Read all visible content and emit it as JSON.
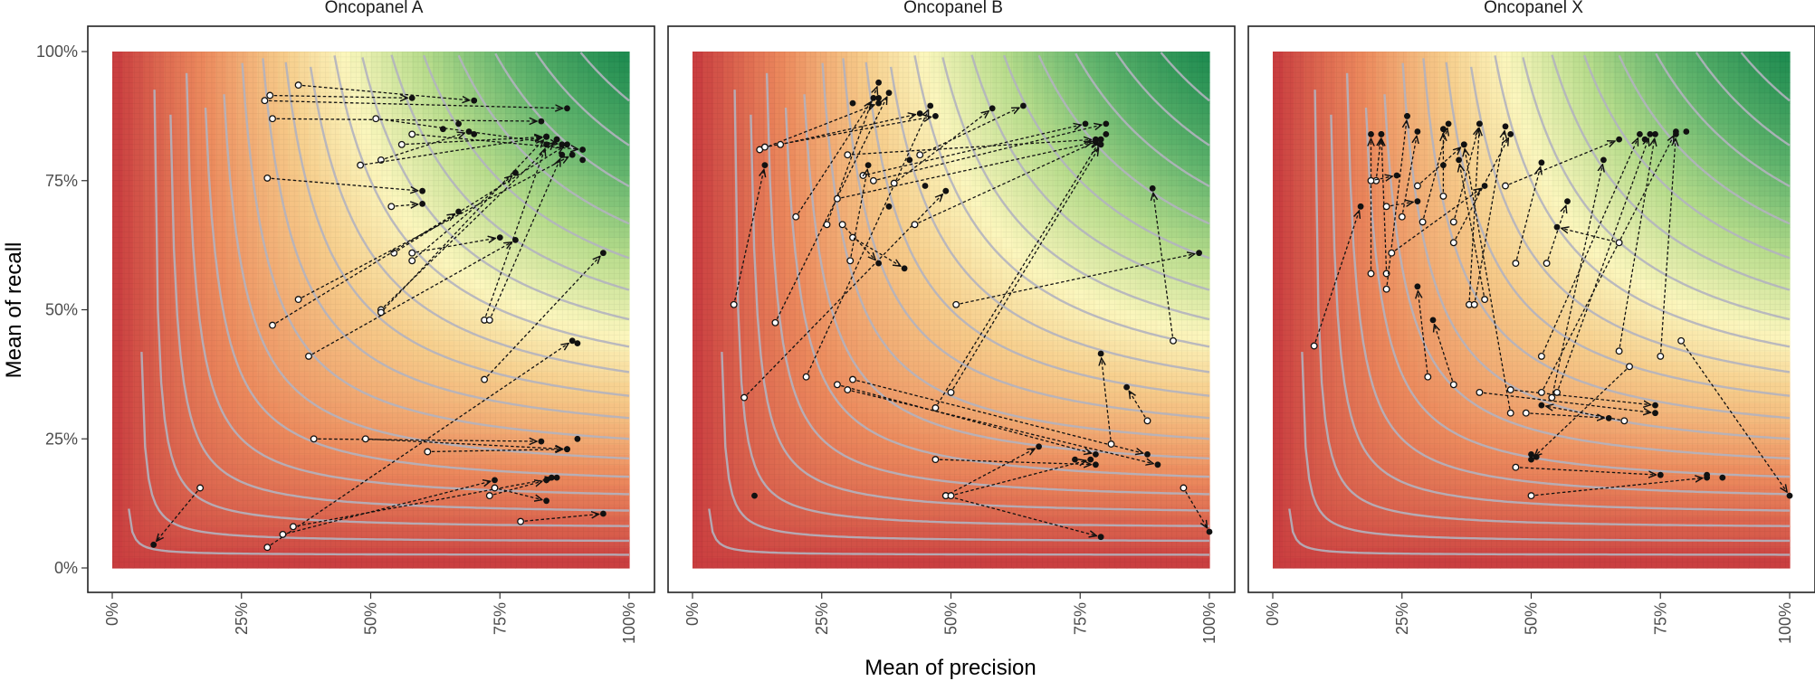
{
  "chart_data": {
    "type": "scatter",
    "xlabel": "Mean of precision",
    "ylabel": "Mean of recall",
    "xlim": [
      0,
      1
    ],
    "ylim": [
      0,
      1
    ],
    "ticks": [
      0,
      0.25,
      0.5,
      0.75,
      1
    ],
    "tick_labels": [
      "0%",
      "25%",
      "50%",
      "75%",
      "100%"
    ],
    "background": "F1-score heat map (red = low, yellow = mid, green = high) with iso-F1 contour lines",
    "colors": {
      "low": "#c83a3e",
      "mid": "#fbf6bd",
      "high": "#1b8a4f",
      "contour": "#b3b3bf",
      "arrow": "#111111"
    },
    "panels": [
      {
        "title": "Oncopanel A",
        "arrows": [
          [
            0.17,
            0.155,
            0.08,
            0.045
          ],
          [
            0.3,
            0.04,
            0.89,
            0.44
          ],
          [
            0.33,
            0.065,
            0.74,
            0.17
          ],
          [
            0.35,
            0.08,
            0.86,
            0.175
          ],
          [
            0.73,
            0.14,
            0.84,
            0.17
          ],
          [
            0.74,
            0.155,
            0.84,
            0.13
          ],
          [
            0.39,
            0.25,
            0.83,
            0.245
          ],
          [
            0.49,
            0.25,
            0.88,
            0.23
          ],
          [
            0.61,
            0.225,
            0.88,
            0.23
          ],
          [
            0.79,
            0.09,
            0.95,
            0.105
          ],
          [
            0.36,
            0.935,
            0.7,
            0.905
          ],
          [
            0.295,
            0.905,
            0.88,
            0.89
          ],
          [
            0.305,
            0.915,
            0.58,
            0.91
          ],
          [
            0.31,
            0.87,
            0.83,
            0.865
          ],
          [
            0.3,
            0.755,
            0.6,
            0.73
          ],
          [
            0.51,
            0.87,
            0.87,
            0.82
          ],
          [
            0.56,
            0.82,
            0.84,
            0.835
          ],
          [
            0.52,
            0.79,
            0.69,
            0.845
          ],
          [
            0.48,
            0.78,
            0.84,
            0.835
          ],
          [
            0.54,
            0.7,
            0.6,
            0.705
          ],
          [
            0.52,
            0.5,
            0.86,
            0.83
          ],
          [
            0.545,
            0.61,
            0.88,
            0.82
          ],
          [
            0.58,
            0.595,
            0.78,
            0.765
          ],
          [
            0.58,
            0.61,
            0.75,
            0.64
          ],
          [
            0.31,
            0.47,
            0.67,
            0.69
          ],
          [
            0.36,
            0.52,
            0.89,
            0.8
          ],
          [
            0.38,
            0.41,
            0.78,
            0.635
          ],
          [
            0.72,
            0.48,
            0.84,
            0.82
          ],
          [
            0.73,
            0.48,
            0.87,
            0.8
          ],
          [
            0.72,
            0.365,
            0.95,
            0.61
          ],
          [
            0.52,
            0.495,
            0.84,
            0.835
          ],
          [
            0.58,
            0.84,
            0.91,
            0.81
          ]
        ],
        "dots": [
          [
            0.9,
            0.435
          ],
          [
            0.85,
            0.175
          ],
          [
            0.9,
            0.25
          ],
          [
            0.91,
            0.79
          ],
          [
            0.86,
            0.83
          ],
          [
            0.64,
            0.85
          ],
          [
            0.67,
            0.86
          ],
          [
            0.7,
            0.84
          ]
        ]
      },
      {
        "title": "Oncopanel B",
        "arrows": [
          [
            0.08,
            0.51,
            0.14,
            0.78
          ],
          [
            0.1,
            0.33,
            0.49,
            0.73
          ],
          [
            0.16,
            0.475,
            0.38,
            0.92
          ],
          [
            0.13,
            0.81,
            0.36,
            0.9
          ],
          [
            0.14,
            0.815,
            0.47,
            0.875
          ],
          [
            0.17,
            0.82,
            0.44,
            0.88
          ],
          [
            0.2,
            0.68,
            0.35,
            0.91
          ],
          [
            0.22,
            0.37,
            0.46,
            0.895
          ],
          [
            0.26,
            0.665,
            0.36,
            0.94
          ],
          [
            0.28,
            0.715,
            0.78,
            0.825
          ],
          [
            0.3,
            0.8,
            0.78,
            0.83
          ],
          [
            0.33,
            0.76,
            0.76,
            0.86
          ],
          [
            0.35,
            0.75,
            0.8,
            0.86
          ],
          [
            0.39,
            0.745,
            0.58,
            0.89
          ],
          [
            0.43,
            0.665,
            0.79,
            0.83
          ],
          [
            0.29,
            0.665,
            0.36,
            0.59
          ],
          [
            0.31,
            0.64,
            0.41,
            0.58
          ],
          [
            0.305,
            0.595,
            0.34,
            0.78
          ],
          [
            0.31,
            0.365,
            0.88,
            0.22
          ],
          [
            0.28,
            0.355,
            0.78,
            0.22
          ],
          [
            0.3,
            0.345,
            0.9,
            0.2
          ],
          [
            0.47,
            0.31,
            0.79,
            0.83
          ],
          [
            0.5,
            0.34,
            0.79,
            0.82
          ],
          [
            0.51,
            0.51,
            0.98,
            0.61
          ],
          [
            0.81,
            0.24,
            0.79,
            0.415
          ],
          [
            0.88,
            0.285,
            0.84,
            0.35
          ],
          [
            0.93,
            0.44,
            0.89,
            0.735
          ],
          [
            0.47,
            0.21,
            0.78,
            0.2
          ],
          [
            0.49,
            0.14,
            0.67,
            0.235
          ],
          [
            0.49,
            0.14,
            0.79,
            0.06
          ],
          [
            0.5,
            0.14,
            0.77,
            0.21
          ],
          [
            0.95,
            0.155,
            1.0,
            0.07
          ],
          [
            0.44,
            0.8,
            0.64,
            0.895
          ]
        ],
        "dots": [
          [
            0.12,
            0.14
          ],
          [
            0.36,
            0.91
          ],
          [
            0.42,
            0.79
          ],
          [
            0.45,
            0.74
          ],
          [
            0.38,
            0.7
          ],
          [
            0.31,
            0.9
          ],
          [
            0.8,
            0.84
          ],
          [
            0.74,
            0.21
          ]
        ]
      },
      {
        "title": "Oncopanel X",
        "arrows": [
          [
            0.08,
            0.43,
            0.17,
            0.7
          ],
          [
            0.19,
            0.57,
            0.19,
            0.84
          ],
          [
            0.2,
            0.75,
            0.21,
            0.84
          ],
          [
            0.22,
            0.57,
            0.21,
            0.84
          ],
          [
            0.19,
            0.75,
            0.24,
            0.76
          ],
          [
            0.22,
            0.7,
            0.28,
            0.71
          ],
          [
            0.22,
            0.54,
            0.26,
            0.875
          ],
          [
            0.23,
            0.61,
            0.41,
            0.74
          ],
          [
            0.25,
            0.68,
            0.28,
            0.845
          ],
          [
            0.28,
            0.74,
            0.37,
            0.82
          ],
          [
            0.29,
            0.67,
            0.34,
            0.86
          ],
          [
            0.33,
            0.72,
            0.33,
            0.85
          ],
          [
            0.35,
            0.67,
            0.4,
            0.86
          ],
          [
            0.35,
            0.63,
            0.46,
            0.84
          ],
          [
            0.38,
            0.51,
            0.4,
            0.86
          ],
          [
            0.39,
            0.51,
            0.45,
            0.855
          ],
          [
            0.47,
            0.59,
            0.52,
            0.785
          ],
          [
            0.41,
            0.52,
            0.36,
            0.79
          ],
          [
            0.46,
            0.3,
            0.37,
            0.82
          ],
          [
            0.3,
            0.37,
            0.28,
            0.545
          ],
          [
            0.35,
            0.355,
            0.31,
            0.48
          ],
          [
            0.45,
            0.74,
            0.67,
            0.83
          ],
          [
            0.53,
            0.59,
            0.57,
            0.71
          ],
          [
            0.52,
            0.41,
            0.71,
            0.84
          ],
          [
            0.55,
            0.34,
            0.73,
            0.84
          ],
          [
            0.54,
            0.33,
            0.64,
            0.79
          ],
          [
            0.49,
            0.3,
            0.65,
            0.29
          ],
          [
            0.46,
            0.345,
            0.74,
            0.315
          ],
          [
            0.52,
            0.34,
            0.78,
            0.845
          ],
          [
            0.69,
            0.39,
            0.5,
            0.21
          ],
          [
            0.47,
            0.195,
            0.75,
            0.18
          ],
          [
            0.5,
            0.14,
            0.84,
            0.175
          ],
          [
            0.67,
            0.42,
            0.74,
            0.84
          ],
          [
            0.75,
            0.41,
            0.78,
            0.84
          ],
          [
            0.79,
            0.44,
            1.0,
            0.14
          ],
          [
            0.67,
            0.63,
            0.55,
            0.66
          ],
          [
            0.4,
            0.34,
            0.74,
            0.3
          ],
          [
            0.68,
            0.285,
            0.52,
            0.315
          ]
        ],
        "dots": [
          [
            0.26,
            0.875
          ],
          [
            0.84,
            0.18
          ],
          [
            0.87,
            0.175
          ],
          [
            0.8,
            0.845
          ],
          [
            0.72,
            0.83
          ],
          [
            0.5,
            0.22
          ],
          [
            0.51,
            0.215
          ],
          [
            0.33,
            0.78
          ]
        ]
      }
    ]
  }
}
